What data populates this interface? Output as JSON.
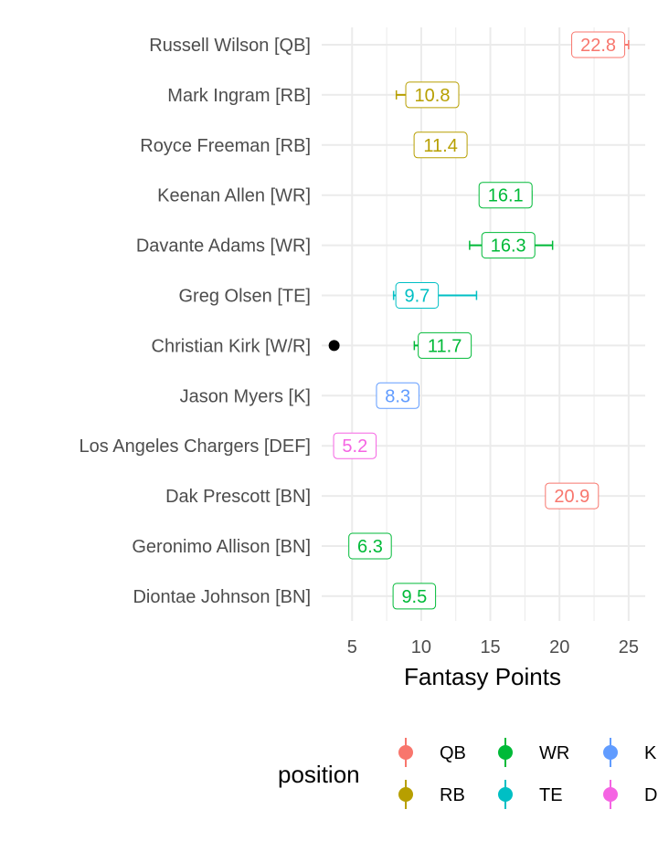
{
  "chart_data": {
    "type": "scatter",
    "xlabel": "Fantasy Points",
    "ylabel": "",
    "x_ticks": [
      5,
      10,
      15,
      20,
      25
    ],
    "xlim": [
      2.8,
      26.2
    ],
    "grid": true,
    "players": [
      {
        "label": "Russell Wilson [QB]",
        "position": "QB",
        "value": 22.8,
        "value_label": "22.8",
        "low": 22.8,
        "high": 25.0
      },
      {
        "label": "Mark Ingram [RB]",
        "position": "RB",
        "value": 10.8,
        "value_label": "10.8",
        "low": 8.2,
        "high": 10.8
      },
      {
        "label": "Royce Freeman [RB]",
        "position": "RB",
        "value": 11.4,
        "value_label": "11.4",
        "low": 11.4,
        "high": 11.4
      },
      {
        "label": "Keenan Allen [WR]",
        "position": "WR",
        "value": 16.1,
        "value_label": "16.1",
        "low": 14.6,
        "high": 18.0
      },
      {
        "label": "Davante Adams [WR]",
        "position": "WR",
        "value": 16.3,
        "value_label": "16.3",
        "low": 13.5,
        "high": 19.5
      },
      {
        "label": "Greg Olsen [TE]",
        "position": "TE",
        "value": 9.7,
        "value_label": "9.7",
        "low": 8.0,
        "high": 14.0
      },
      {
        "label": "Christian Kirk [W/R]",
        "position": "WR",
        "value": 11.7,
        "value_label": "11.7",
        "low": 9.5,
        "high": 11.7,
        "extra_point": 3.7
      },
      {
        "label": "Jason Myers [K]",
        "position": "K",
        "value": 8.3,
        "value_label": "8.3",
        "low": 8.3,
        "high": 8.3
      },
      {
        "label": "Los Angeles Chargers [DEF]",
        "position": "DEF",
        "value": 5.2,
        "value_label": "5.2",
        "low": 5.2,
        "high": 5.2
      },
      {
        "label": "Dak Prescott [BN]",
        "position": "QB",
        "value": 20.9,
        "value_label": "20.9",
        "low": 20.9,
        "high": 20.9
      },
      {
        "label": "Geronimo Allison [BN]",
        "position": "WR",
        "value": 6.3,
        "value_label": "6.3",
        "low": 6.3,
        "high": 6.3
      },
      {
        "label": "Diontae Johnson [BN]",
        "position": "WR",
        "value": 9.5,
        "value_label": "9.5",
        "low": 9.5,
        "high": 9.5
      }
    ],
    "legend": {
      "title": "position",
      "placement": "bottom",
      "entries": [
        {
          "key": "QB",
          "label": "QB"
        },
        {
          "key": "RB",
          "label": "RB"
        },
        {
          "key": "WR",
          "label": "WR"
        },
        {
          "key": "TE",
          "label": "TE"
        },
        {
          "key": "K",
          "label": "K"
        },
        {
          "key": "DEF",
          "label": "DEF"
        }
      ]
    },
    "colors": {
      "QB": "#F8766D",
      "RB": "#B79F00",
      "WR": "#00BA38",
      "TE": "#00BFC4",
      "K": "#619CFF",
      "DEF": "#F564E3",
      "extra_point": "#000000"
    }
  }
}
